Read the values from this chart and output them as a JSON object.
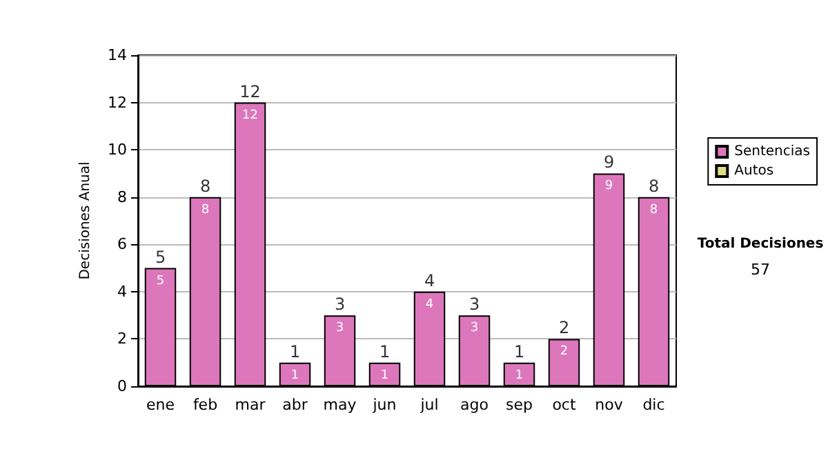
{
  "chart_data": {
    "type": "bar",
    "ylabel": "Decisiones Anual",
    "categories": [
      "ene",
      "feb",
      "mar",
      "abr",
      "may",
      "jun",
      "jul",
      "ago",
      "sep",
      "oct",
      "nov",
      "dic"
    ],
    "series": [
      {
        "name": "Sentencias",
        "color": "#dd77bb",
        "values": [
          5,
          8,
          12,
          1,
          3,
          1,
          4,
          3,
          1,
          2,
          9,
          8
        ]
      },
      {
        "name": "Autos",
        "color": "#dddd88",
        "values": [
          null,
          null,
          null,
          null,
          null,
          null,
          null,
          null,
          null,
          null,
          null,
          null
        ]
      }
    ],
    "stacked": true,
    "totals": [
      "5",
      "8",
      "12",
      "1",
      "3",
      "1",
      "4",
      "3",
      "1",
      "2",
      "9",
      "8"
    ],
    "data_labels": true,
    "ylim": [
      0,
      14
    ],
    "yticks": [
      0,
      2,
      4,
      6,
      8,
      10,
      12,
      14
    ],
    "grid": "y",
    "legend": "right",
    "annotations": [
      "Total Decisiones",
      "57"
    ]
  }
}
